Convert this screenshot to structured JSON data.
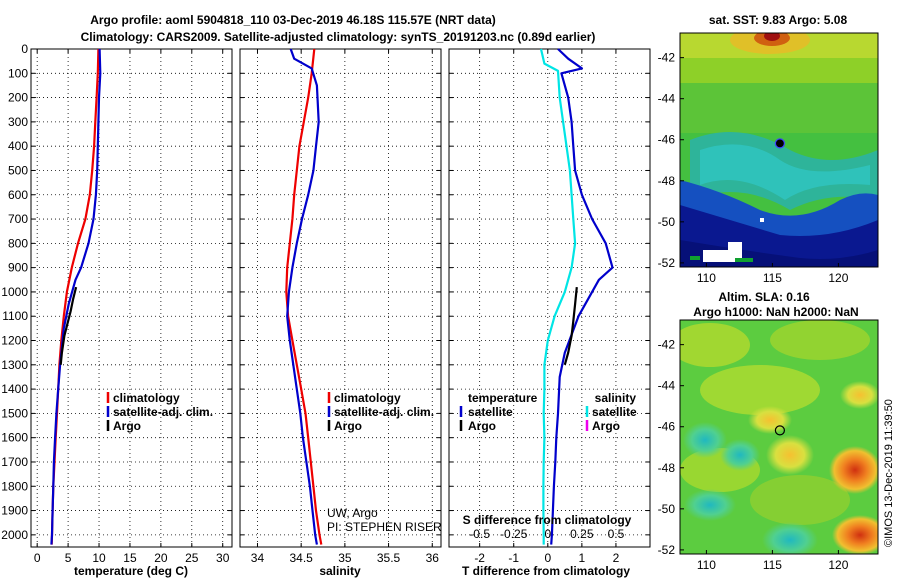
{
  "title_line1": "Argo profile: aoml 5904818_110 03-Dec-2019 46.18S 115.57E (NRT data)",
  "title_line2": "Climatology: CARS2009. Satellite-adjusted climatology: synTS_20191203.nc (0.89d earlier)",
  "map1_title": "sat. SST: 9.83 Argo: 5.08",
  "map2_title_line1": "Altim. SLA: 0.16",
  "map2_title_line2": "Argo h1000: NaN h2000: NaN",
  "watermark": "©IMOS 13-Dec-2019 11:39:50",
  "credit_line1": "UW, Argo",
  "credit_line2": "PI: STEPHEN RISER",
  "colors": {
    "climatology": "#ee0000",
    "satellite": "#0000cc",
    "argo": "#000000",
    "salinity_sat": "#00e5e5",
    "salinity_argo": "#ee00ee"
  },
  "chart_data": [
    {
      "type": "line",
      "xlabel": "temperature (deg C)",
      "ylabel": "",
      "xlim": [
        -1,
        31.5
      ],
      "ylim": [
        2050,
        0
      ],
      "xticks": [
        0,
        5,
        10,
        15,
        20,
        25,
        30
      ],
      "yticks": [
        0,
        100,
        200,
        300,
        400,
        500,
        600,
        700,
        800,
        900,
        1000,
        1100,
        1200,
        1300,
        1400,
        1500,
        1600,
        1700,
        1800,
        1900,
        2000
      ],
      "legend": [
        "climatology",
        "satellite-adj. clim.",
        "Argo"
      ],
      "series": [
        {
          "name": "climatology",
          "color": "#ee0000",
          "points": [
            [
              9.9,
              0
            ],
            [
              9.8,
              100
            ],
            [
              9.6,
              200
            ],
            [
              9.4,
              300
            ],
            [
              9.2,
              400
            ],
            [
              8.9,
              500
            ],
            [
              8.5,
              600
            ],
            [
              7.8,
              700
            ],
            [
              6.6,
              800
            ],
            [
              5.6,
              900
            ],
            [
              4.8,
              1000
            ],
            [
              4.3,
              1100
            ],
            [
              3.9,
              1200
            ],
            [
              3.6,
              1300
            ],
            [
              3.4,
              1400
            ],
            [
              3.2,
              1500
            ],
            [
              3.0,
              1600
            ],
            [
              2.8,
              1700
            ],
            [
              2.6,
              1800
            ],
            [
              2.5,
              1900
            ],
            [
              2.4,
              2000
            ],
            [
              2.35,
              2040
            ]
          ]
        },
        {
          "name": "satellite-adj. clim.",
          "color": "#0000cc",
          "points": [
            [
              10.1,
              0
            ],
            [
              10.2,
              100
            ],
            [
              10.0,
              200
            ],
            [
              9.9,
              300
            ],
            [
              9.8,
              400
            ],
            [
              9.7,
              500
            ],
            [
              9.5,
              600
            ],
            [
              9.1,
              700
            ],
            [
              8.3,
              800
            ],
            [
              7.1,
              900
            ],
            [
              6.2,
              950
            ],
            [
              5.1,
              1050
            ],
            [
              4.3,
              1150
            ],
            [
              3.7,
              1300
            ],
            [
              3.4,
              1400
            ],
            [
              3.1,
              1500
            ],
            [
              2.9,
              1600
            ],
            [
              2.7,
              1700
            ],
            [
              2.6,
              1800
            ],
            [
              2.5,
              1900
            ],
            [
              2.4,
              2000
            ],
            [
              2.3,
              2040
            ]
          ]
        },
        {
          "name": "Argo",
          "color": "#000000",
          "points": [
            [
              6.3,
              980
            ],
            [
              5.8,
              1030
            ],
            [
              5.4,
              1080
            ],
            [
              4.9,
              1130
            ],
            [
              4.4,
              1180
            ],
            [
              4.0,
              1250
            ],
            [
              3.8,
              1300
            ]
          ]
        }
      ]
    },
    {
      "type": "line",
      "xlabel": "salinity",
      "xlim": [
        33.8,
        36.1
      ],
      "ylim": [
        2050,
        0
      ],
      "xticks": [
        34,
        34.5,
        35,
        35.5,
        36
      ],
      "xticklabels": [
        "34",
        "34.5",
        "35",
        "35.5",
        "36"
      ],
      "legend": [
        "climatology",
        "satellite-adj. clim.",
        "Argo"
      ],
      "series": [
        {
          "name": "climatology",
          "color": "#ee0000",
          "points": [
            [
              34.65,
              0
            ],
            [
              34.62,
              100
            ],
            [
              34.58,
              200
            ],
            [
              34.53,
              300
            ],
            [
              34.48,
              400
            ],
            [
              34.45,
              500
            ],
            [
              34.42,
              600
            ],
            [
              34.4,
              700
            ],
            [
              34.37,
              800
            ],
            [
              34.34,
              900
            ],
            [
              34.33,
              1000
            ],
            [
              34.35,
              1100
            ],
            [
              34.4,
              1200
            ],
            [
              34.45,
              1300
            ],
            [
              34.5,
              1400
            ],
            [
              34.55,
              1500
            ],
            [
              34.58,
              1600
            ],
            [
              34.61,
              1700
            ],
            [
              34.64,
              1800
            ],
            [
              34.67,
              1900
            ],
            [
              34.71,
              2000
            ],
            [
              34.73,
              2040
            ]
          ]
        },
        {
          "name": "satellite-adj. clim.",
          "color": "#0000cc",
          "points": [
            [
              34.38,
              0
            ],
            [
              34.42,
              40
            ],
            [
              34.62,
              80
            ],
            [
              34.68,
              150
            ],
            [
              34.7,
              300
            ],
            [
              34.67,
              400
            ],
            [
              34.64,
              500
            ],
            [
              34.58,
              600
            ],
            [
              34.51,
              700
            ],
            [
              34.45,
              800
            ],
            [
              34.4,
              900
            ],
            [
              34.36,
              1000
            ],
            [
              34.34,
              1100
            ],
            [
              34.37,
              1200
            ],
            [
              34.41,
              1300
            ],
            [
              34.45,
              1400
            ],
            [
              34.49,
              1500
            ],
            [
              34.52,
              1600
            ],
            [
              34.56,
              1700
            ],
            [
              34.6,
              1800
            ],
            [
              34.63,
              1900
            ],
            [
              34.66,
              2000
            ],
            [
              34.68,
              2040
            ]
          ]
        },
        {
          "name": "Argo",
          "color": "#000000",
          "points": []
        }
      ]
    },
    {
      "type": "line",
      "xlabel": "T difference from climatology",
      "xlabel2": "S difference from climatology",
      "xlim": [
        -2.9,
        3.0
      ],
      "ylim": [
        2050,
        0
      ],
      "xticks": [
        -2,
        -1,
        0,
        1,
        2
      ],
      "xticks2": [
        -0.5,
        -0.25,
        0,
        0.25,
        0.5
      ],
      "xticklabels2": [
        "-0.5",
        "-0.25",
        "0",
        "0.25",
        "0.5"
      ],
      "legend_left_title": "temperature",
      "legend_right_title": "salinity",
      "legend_left": [
        "satellite",
        "Argo"
      ],
      "legend_right": [
        "satellite",
        "Argo"
      ],
      "series": [
        {
          "name": "temperature satellite",
          "color": "#0000cc",
          "points": [
            [
              0.3,
              0
            ],
            [
              0.6,
              40
            ],
            [
              1.0,
              80
            ],
            [
              0.4,
              100
            ],
            [
              0.6,
              200
            ],
            [
              0.7,
              300
            ],
            [
              0.75,
              400
            ],
            [
              0.8,
              500
            ],
            [
              1.0,
              600
            ],
            [
              1.3,
              700
            ],
            [
              1.7,
              800
            ],
            [
              1.9,
              900
            ],
            [
              1.5,
              950
            ],
            [
              0.9,
              1100
            ],
            [
              0.5,
              1250
            ],
            [
              0.35,
              1350
            ],
            [
              0.3,
              1500
            ],
            [
              0.25,
              1600
            ],
            [
              0.22,
              1700
            ],
            [
              0.18,
              1800
            ],
            [
              0.15,
              1900
            ],
            [
              0.12,
              2000
            ],
            [
              0.1,
              2040
            ]
          ]
        },
        {
          "name": "temperature Argo",
          "color": "#000000",
          "points": [
            [
              0.85,
              980
            ],
            [
              0.8,
              1050
            ],
            [
              0.75,
              1120
            ],
            [
              0.7,
              1180
            ],
            [
              0.6,
              1250
            ],
            [
              0.5,
              1300
            ]
          ]
        },
        {
          "name": "salinity satellite",
          "color": "#00e5e5",
          "points": [
            [
              -0.2,
              0
            ],
            [
              -0.1,
              60
            ],
            [
              0.3,
              90
            ],
            [
              0.35,
              200
            ],
            [
              0.45,
              300
            ],
            [
              0.55,
              400
            ],
            [
              0.65,
              500
            ],
            [
              0.7,
              600
            ],
            [
              0.75,
              700
            ],
            [
              0.8,
              800
            ],
            [
              0.7,
              900
            ],
            [
              0.5,
              1000
            ],
            [
              0.2,
              1100
            ],
            [
              0.0,
              1200
            ],
            [
              -0.1,
              1300
            ],
            [
              -0.1,
              1400
            ],
            [
              -0.12,
              1500
            ],
            [
              -0.1,
              1600
            ],
            [
              -0.12,
              1700
            ],
            [
              -0.13,
              1800
            ],
            [
              -0.13,
              1900
            ],
            [
              -0.12,
              2000
            ],
            [
              -0.12,
              2040
            ]
          ]
        },
        {
          "name": "salinity Argo",
          "color": "#ee00ee",
          "points": []
        }
      ]
    },
    {
      "type": "heatmap",
      "title": "sat. SST: 9.83 Argo: 5.08",
      "xlim": [
        108,
        123
      ],
      "ylim": [
        -52.2,
        -40.8
      ],
      "xticks": [
        110,
        115,
        120
      ],
      "yticks": [
        -42,
        -44,
        -46,
        -48,
        -50,
        -52
      ],
      "marker": [
        115.57,
        -46.18
      ]
    },
    {
      "type": "heatmap",
      "title": "Altim. SLA: 0.16",
      "xlim": [
        108,
        123
      ],
      "ylim": [
        -52.2,
        -40.8
      ],
      "xticks": [
        110,
        115,
        120
      ],
      "yticks": [
        -42,
        -44,
        -46,
        -48,
        -50,
        -52
      ],
      "marker": [
        115.57,
        -46.18
      ]
    }
  ]
}
